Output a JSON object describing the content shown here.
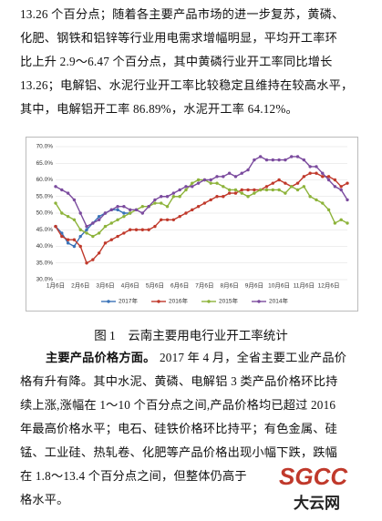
{
  "document": {
    "para1": [
      "13.26 个百分点；随着各主要产品市场的进一步复苏，黄磷、",
      "化肥、钢铁和铝锌等行业用电需求增幅明显，平均开工率环",
      "比上升 2.9～6.47 个百分点，其中黄磷行业开工率同比增长",
      "13.26；电解铝、水泥行业开工率比较稳定且维持在较高水平，",
      "其中，电解铝开工率 86.89%，水泥开工率 64.12%。"
    ],
    "caption": "图 1　云南主要用电行业开工率统计",
    "para2_lead": "主要产品价格方面。",
    "para2_first": "2017 年 4 月，全省主要工业产品价",
    "para2": [
      "格有升有降。其中水泥、黄磷、电解铝 3 类产品价格环比持",
      "续上涨,涨幅在 1～10 个百分点之间,产品价格均已超过 2016",
      "年最高价格水平；电石、硅铁价格环比持平；有色金属、硅",
      "锰、工业硅、热轧卷、化肥等产品价格出现小幅下跌，跌幅",
      "在 1.8～13.4 个百分点之间，但整体仍高于",
      "格水平。"
    ],
    "watermark": [
      "SGCC",
      "大云网"
    ]
  },
  "chart_data": {
    "type": "line",
    "categories": [
      "1月6日",
      null,
      null,
      null,
      "2月6日",
      null,
      null,
      null,
      "3月6日",
      null,
      null,
      null,
      "4月6日",
      null,
      null,
      null,
      "5月6日",
      null,
      null,
      null,
      "6月6日",
      null,
      null,
      null,
      "7月6日",
      null,
      null,
      null,
      "8月6日",
      null,
      null,
      null,
      "9月6日",
      null,
      null,
      null,
      "10月6日",
      null,
      null,
      null,
      "11月6日",
      null,
      null,
      null,
      "12月6日",
      null,
      null,
      null
    ],
    "series": [
      {
        "name": "2017年",
        "color": "#3a73b8",
        "values": [
          46,
          44,
          41,
          40,
          43,
          45,
          47,
          49,
          50,
          51,
          51,
          50,
          50,
          null,
          null,
          null,
          null,
          null,
          null,
          null,
          null,
          null,
          null,
          null,
          null,
          null,
          null,
          null,
          null,
          null,
          null,
          null,
          null,
          null,
          null,
          null,
          null,
          null,
          null,
          null,
          null,
          null,
          null,
          null,
          null,
          null,
          null,
          null
        ]
      },
      {
        "name": "2016年",
        "color": "#c0392b",
        "values": [
          46,
          43,
          42,
          42,
          40,
          35,
          36,
          38,
          41,
          42,
          43,
          44,
          45,
          45,
          45,
          45,
          46,
          48,
          48,
          48,
          49,
          50,
          51,
          52,
          53,
          54,
          55,
          55,
          56,
          56,
          57,
          57,
          57,
          57,
          58,
          59,
          60,
          59,
          58,
          59,
          61,
          62,
          62,
          61,
          61,
          60,
          58,
          59
        ]
      },
      {
        "name": "2015年",
        "color": "#8db33a",
        "values": [
          53,
          50,
          49,
          48,
          45,
          44,
          43,
          44,
          46,
          47,
          48,
          49,
          50,
          51,
          52,
          52,
          53,
          53,
          52,
          55,
          55,
          57,
          59,
          60,
          60,
          59,
          59,
          58,
          57,
          57,
          56,
          55,
          56,
          57,
          57,
          57,
          57,
          56,
          58,
          57,
          58,
          55,
          54,
          53,
          51,
          47,
          48,
          47
        ]
      },
      {
        "name": "2014年",
        "color": "#7b4b9e",
        "values": [
          58,
          57,
          56,
          54,
          50,
          46,
          47,
          48,
          50,
          51,
          52,
          52,
          51,
          51,
          50,
          52,
          54,
          55,
          55,
          56,
          57,
          58,
          58,
          59,
          60,
          60,
          61,
          61,
          62,
          61,
          62,
          63,
          66,
          67,
          66,
          66,
          66,
          66,
          67,
          67,
          66,
          64,
          64,
          62,
          60,
          58,
          57,
          54
        ]
      }
    ],
    "ylim": [
      30,
      70
    ],
    "yticks": [
      {
        "value": 30,
        "label": "30.0%"
      },
      {
        "value": 35,
        "label": "35.0%"
      },
      {
        "value": 40,
        "label": "40.0%"
      },
      {
        "value": 45,
        "label": "45.0%"
      },
      {
        "value": 50,
        "label": "50.0%"
      },
      {
        "value": 55,
        "label": "55.0%"
      },
      {
        "value": 60,
        "label": "60.0%"
      },
      {
        "value": 65,
        "label": "65.0%"
      },
      {
        "value": 70,
        "label": "70.0%"
      }
    ],
    "grid": true
  }
}
